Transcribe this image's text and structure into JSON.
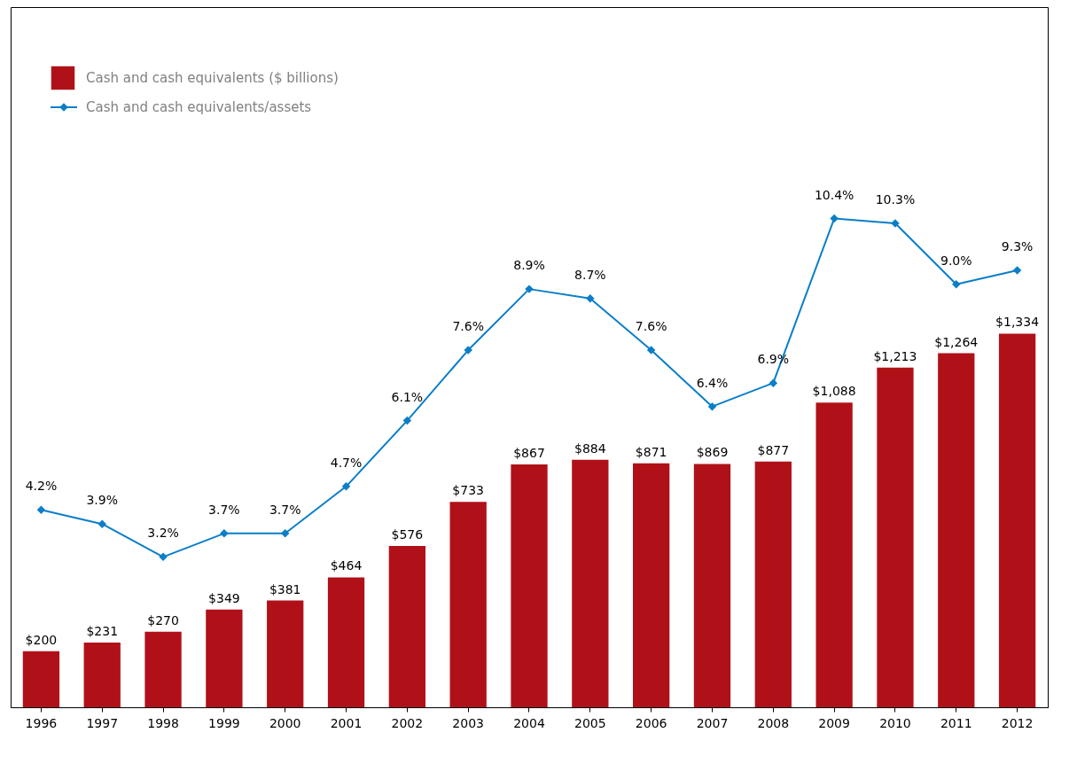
{
  "chart_data": {
    "type": "bar",
    "categories": [
      "1996",
      "1997",
      "1998",
      "1999",
      "2000",
      "2001",
      "2002",
      "2003",
      "2004",
      "2005",
      "2006",
      "2007",
      "2008",
      "2009",
      "2010",
      "2011",
      "2012"
    ],
    "series": [
      {
        "name": "Cash and cash equivalents ($ billions)",
        "color": "#b01119",
        "values": [
          200,
          231,
          270,
          349,
          381,
          464,
          576,
          733,
          867,
          884,
          871,
          869,
          877,
          1088,
          1213,
          1264,
          1334
        ],
        "value_labels": [
          "$200",
          "$231",
          "$270",
          "$349",
          "$381",
          "$464",
          "$576",
          "$733",
          "$867",
          "$884",
          "$871",
          "$869",
          "$877",
          "$1,088",
          "$1,213",
          "$1,264",
          "$1,334"
        ]
      },
      {
        "name": "Cash and cash equivalents/assets",
        "type": "line",
        "axis": "y2",
        "color": "#0b7ec8",
        "marker": "diamond",
        "values": [
          4.2,
          3.9,
          3.2,
          3.7,
          3.7,
          4.7,
          6.1,
          7.6,
          8.9,
          8.7,
          7.6,
          6.4,
          6.9,
          10.4,
          10.3,
          9.0,
          9.3
        ],
        "value_labels": [
          "4.2%",
          "3.9%",
          "3.2%",
          "3.7%",
          "3.7%",
          "4.7%",
          "6.1%",
          "7.6%",
          "8.9%",
          "8.7%",
          "7.6%",
          "6.4%",
          "6.9%",
          "10.4%",
          "10.3%",
          "9.0%",
          "9.3%"
        ]
      }
    ],
    "ylim": [
      0,
      2500
    ],
    "y2lim": [
      0,
      14.9
    ],
    "tick_labels": "x",
    "grid": false,
    "legend": "top left"
  }
}
